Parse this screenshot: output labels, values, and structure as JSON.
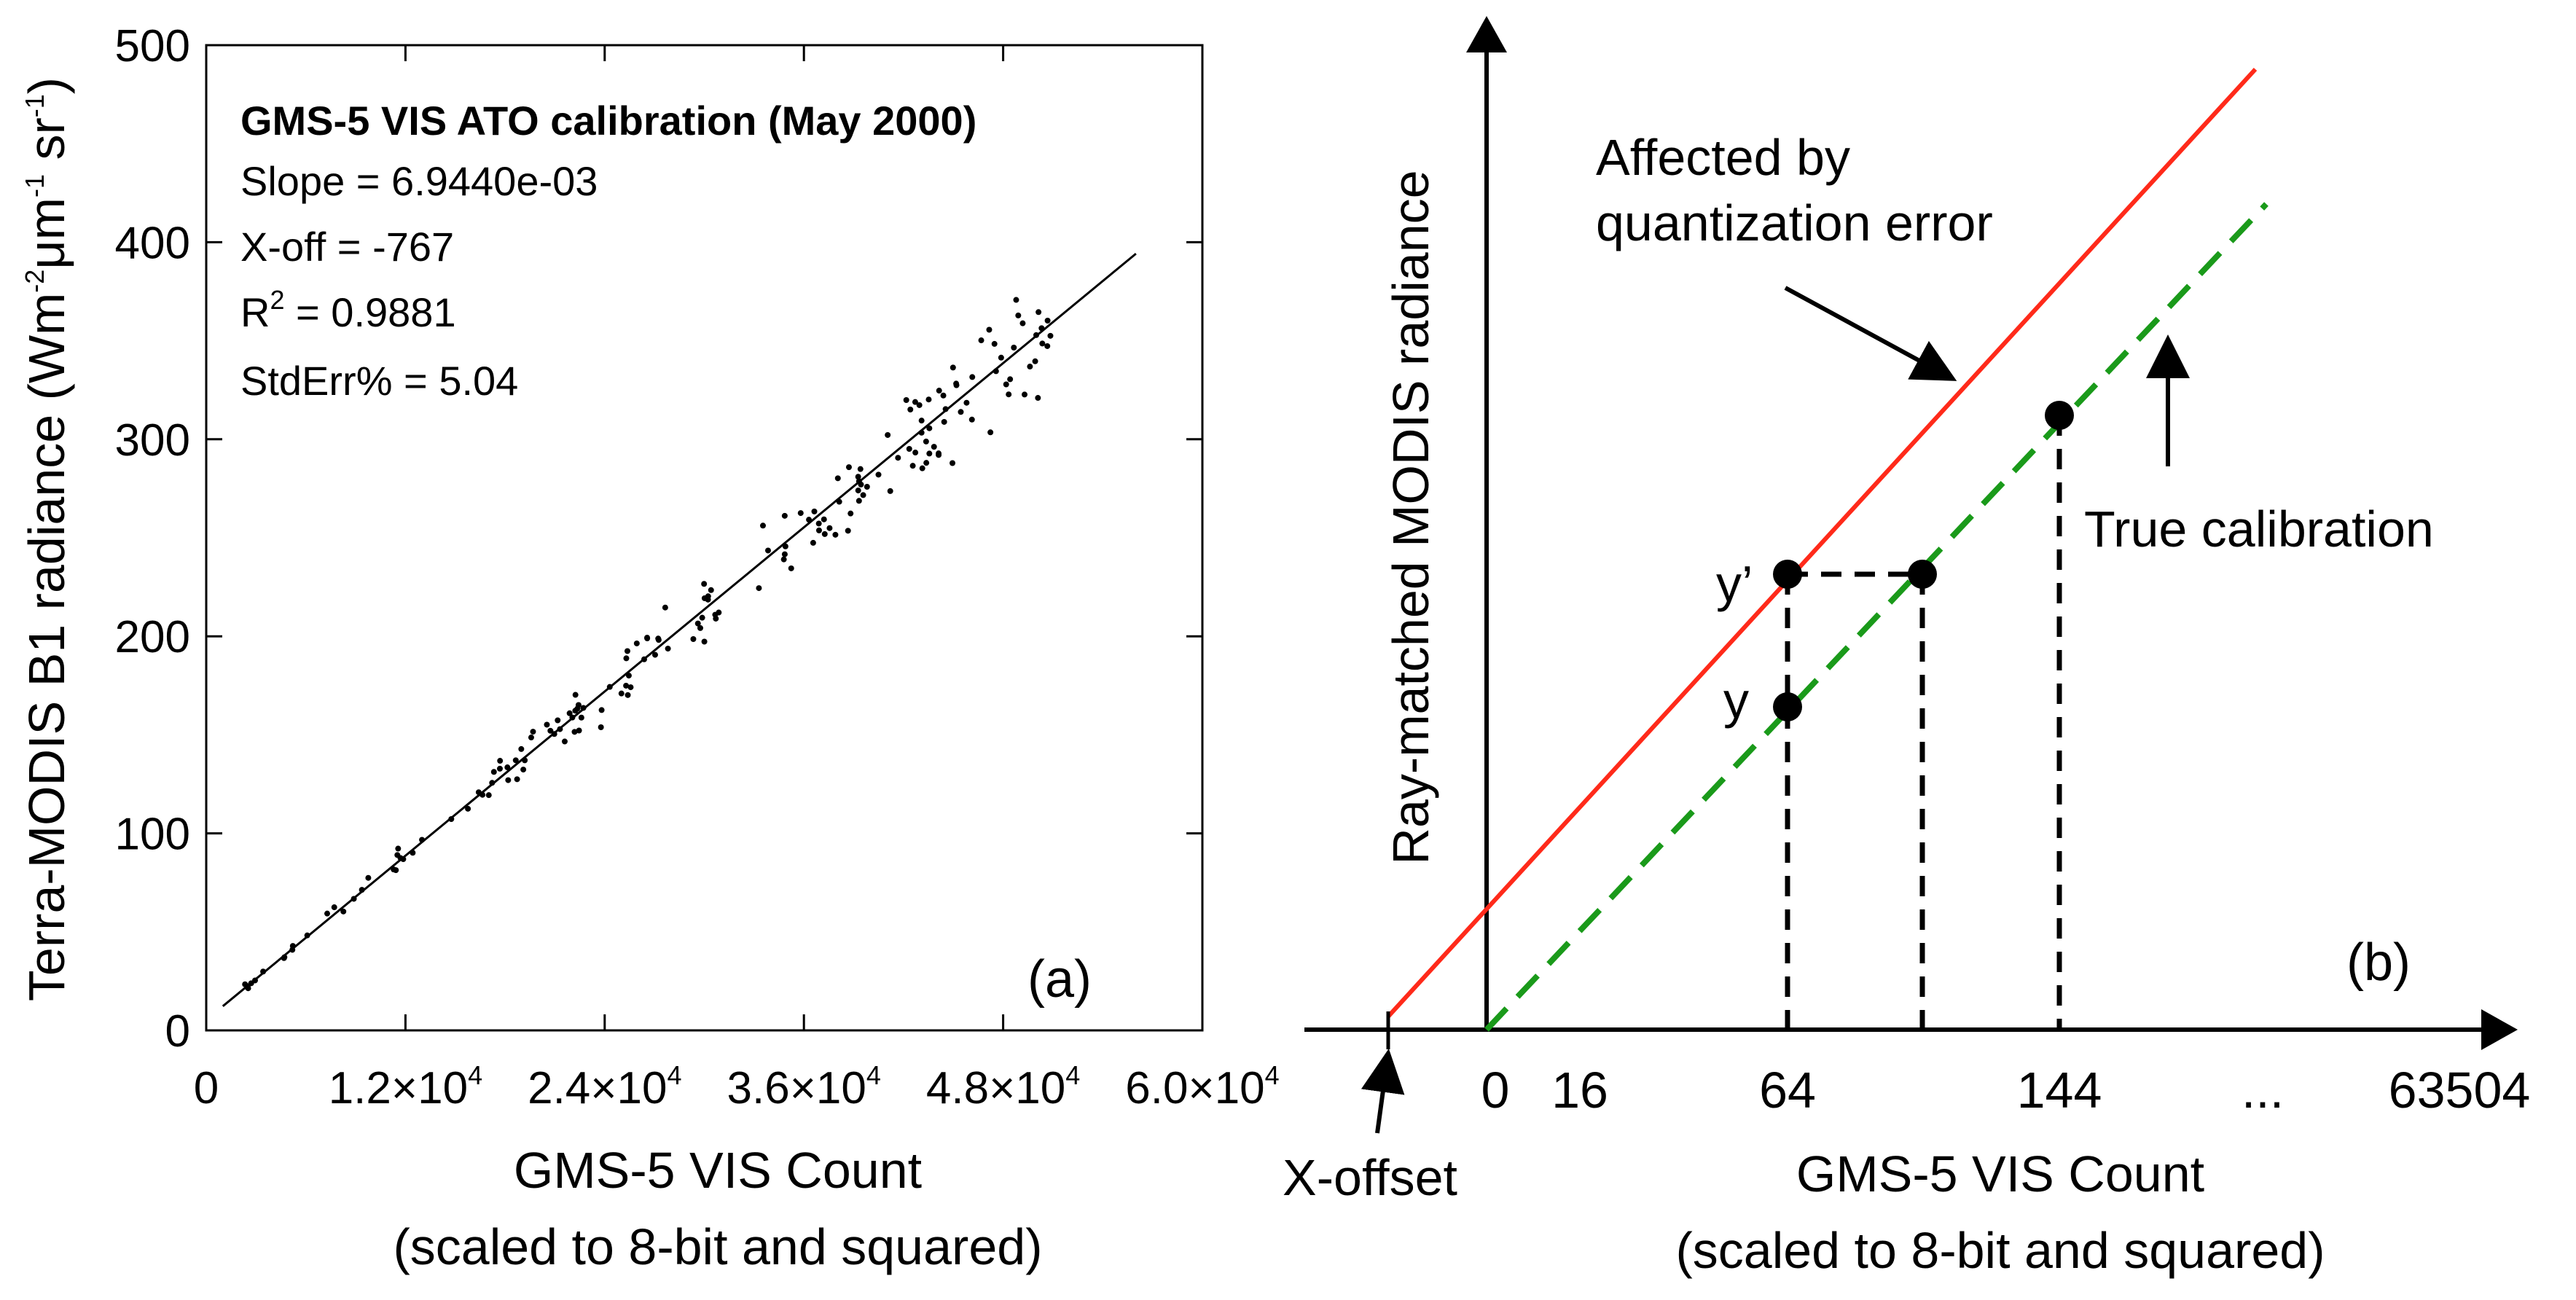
{
  "chart_data": [
    {
      "panel": "(a)",
      "type": "scatter",
      "title": "GMS-5 VIS ATO calibration (May 2000)",
      "stats": {
        "slope": "Slope = 6.9440e-03",
        "xoff": "X-off = -767",
        "r2_base": "R",
        "r2_sup": "2",
        "r2_tail": " = 0.9881",
        "stderr": "StdErr% = 5.04"
      },
      "ylabel": {
        "base": "Terra-MODIS B1 radiance (Wm",
        "s1": "-2",
        "mid": "μm",
        "s2": "-1",
        "mid2": " sr",
        "s3": "-1",
        "end": ")"
      },
      "xlabel": [
        "GMS-5 VIS Count",
        "(scaled to 8-bit and squared)"
      ],
      "xlim": [
        0,
        60000
      ],
      "ylim": [
        0,
        500
      ],
      "yticks": [
        0,
        100,
        200,
        300,
        400,
        500
      ],
      "xticks": [
        {
          "v": 0,
          "base": "0",
          "exp": ""
        },
        {
          "v": 12000,
          "base": "1.2×10",
          "exp": "4"
        },
        {
          "v": 24000,
          "base": "2.4×10",
          "exp": "4"
        },
        {
          "v": 36000,
          "base": "3.6×10",
          "exp": "4"
        },
        {
          "v": 48000,
          "base": "4.8×10",
          "exp": "4"
        },
        {
          "v": 60000,
          "base": "6.0×10",
          "exp": "4"
        }
      ],
      "fit": {
        "slope": 0.006944,
        "xoff": -767,
        "x_range": [
          1000,
          56000
        ]
      },
      "n_points": 180,
      "x_range_points": [
        1500,
        51000
      ],
      "scatter_pct": 5.04
    },
    {
      "panel": "(b)",
      "type": "line",
      "ylabel": "Ray-matched MODIS radiance",
      "xlabel": [
        "GMS-5 VIS Count",
        "(scaled to 8-bit and squared)"
      ],
      "xticks": [
        "0",
        "16",
        "64",
        "144",
        "...",
        "63504"
      ],
      "annotations": {
        "affected_1": "Affected by",
        "affected_2": "quantization error",
        "true_cal": "True calibration",
        "y_prime": "y’",
        "y": "y",
        "x_offset": "X-offset"
      },
      "series": [
        {
          "name": "Affected by quantization error",
          "color": "#ff2a1a",
          "style": "solid"
        },
        {
          "name": "True calibration",
          "color": "#1a9a1a",
          "style": "dashed"
        }
      ],
      "points_labels": [
        "y’",
        "y"
      ]
    }
  ]
}
